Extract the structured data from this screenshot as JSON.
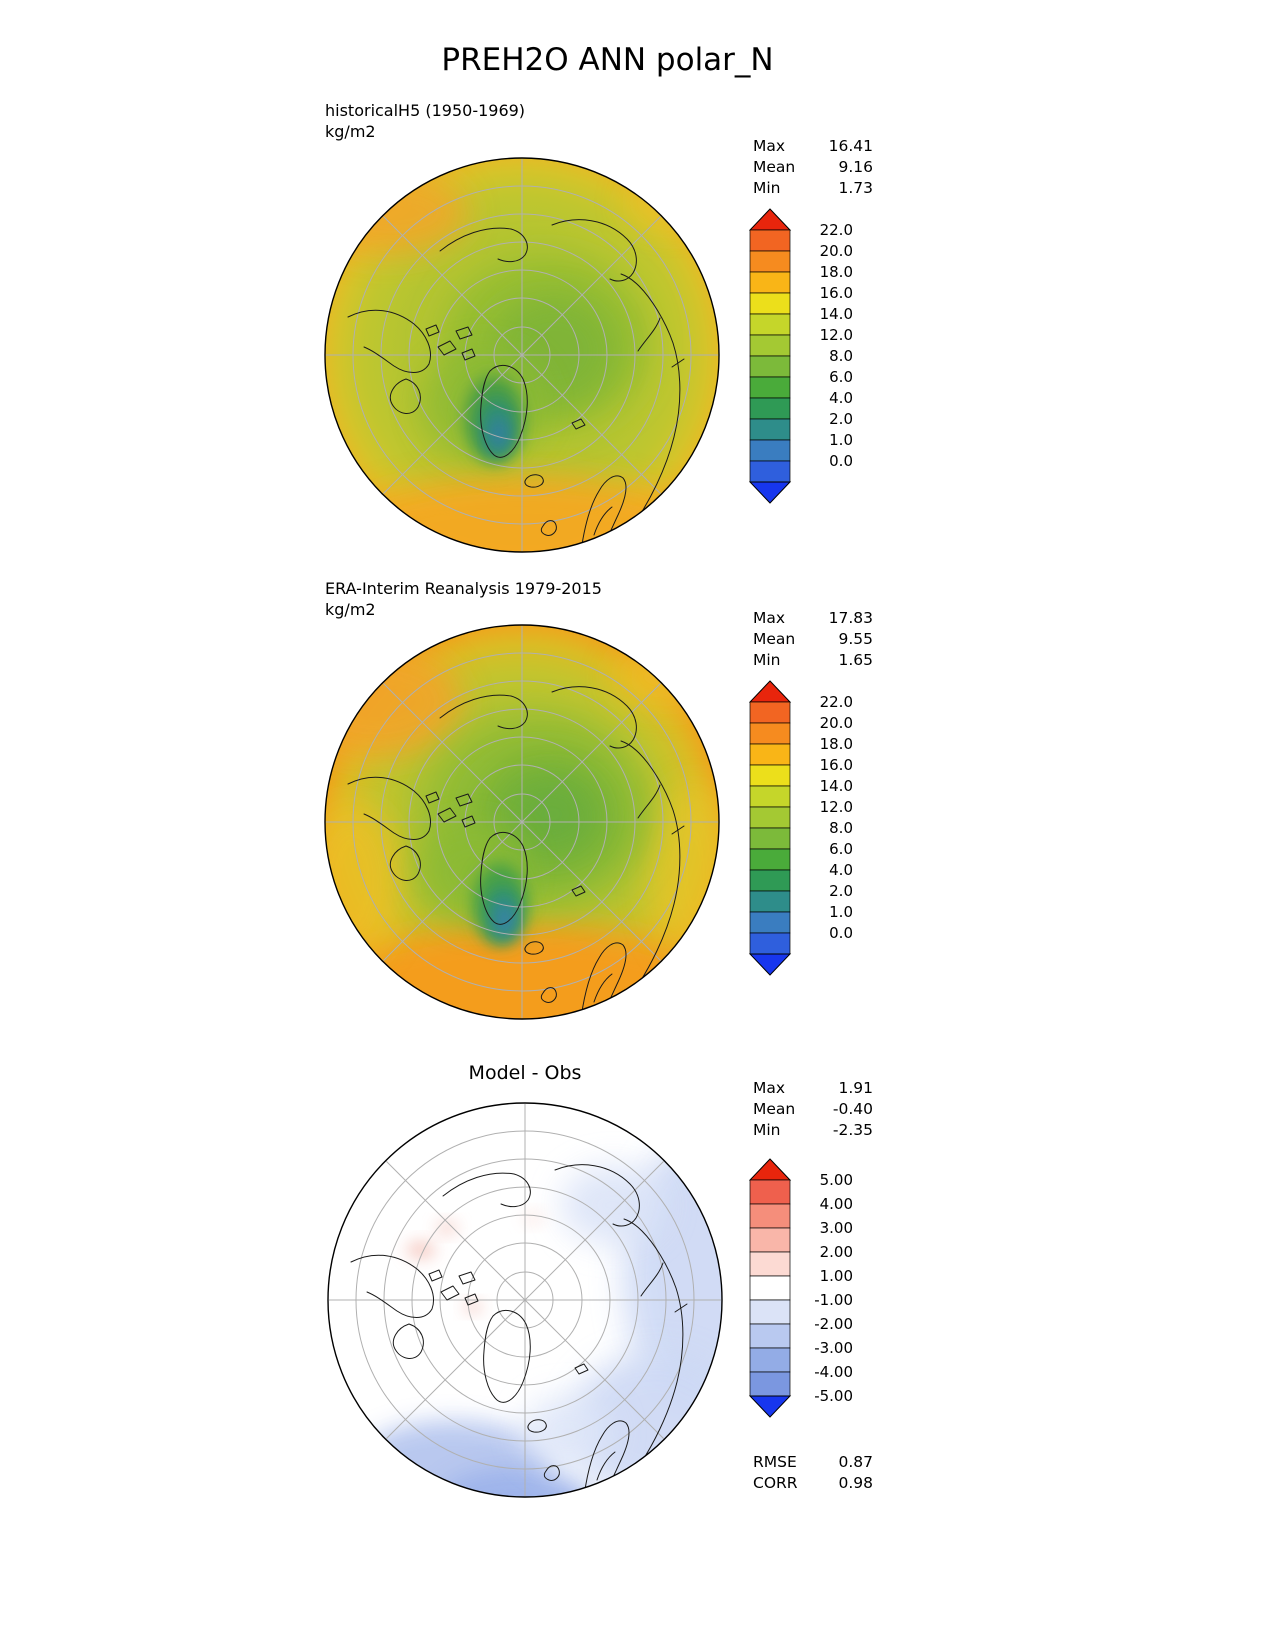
{
  "title": "PREH2O ANN polar_N",
  "panels": [
    {
      "label": "historicalH5 (1950-1969)",
      "units": "kg/m2",
      "stats": [
        {
          "name": "Max",
          "value": "16.41"
        },
        {
          "name": "Mean",
          "value": "9.16"
        },
        {
          "name": "Min",
          "value": "1.73"
        }
      ],
      "colorbar": {
        "labels": [
          "22.0",
          "20.0",
          "18.0",
          "16.0",
          "14.0",
          "12.0",
          "8.0",
          "6.0",
          "4.0",
          "2.0",
          "1.0",
          "0.0"
        ],
        "segments_top_to_bottom": [
          "#f26522",
          "#f68b1f",
          "#f9b517",
          "#ecdf1b",
          "#c5d62a",
          "#a4c933",
          "#7cba3a",
          "#4aab3a",
          "#2f9a55",
          "#2e8d8a",
          "#3a7dc0",
          "#2f5fdd"
        ],
        "arrow_top": "#e8250c",
        "arrow_bottom": "#1736ee"
      }
    },
    {
      "label": "ERA-Interim Reanalysis 1979-2015",
      "units": "kg/m2",
      "stats": [
        {
          "name": "Max",
          "value": "17.83"
        },
        {
          "name": "Mean",
          "value": "9.55"
        },
        {
          "name": "Min",
          "value": "1.65"
        }
      ],
      "colorbar": {
        "labels": [
          "22.0",
          "20.0",
          "18.0",
          "16.0",
          "14.0",
          "12.0",
          "8.0",
          "6.0",
          "4.0",
          "2.0",
          "1.0",
          "0.0"
        ],
        "segments_top_to_bottom": [
          "#f26522",
          "#f68b1f",
          "#f9b517",
          "#ecdf1b",
          "#c5d62a",
          "#a4c933",
          "#7cba3a",
          "#4aab3a",
          "#2f9a55",
          "#2e8d8a",
          "#3a7dc0",
          "#2f5fdd"
        ],
        "arrow_top": "#e8250c",
        "arrow_bottom": "#1736ee"
      }
    },
    {
      "label": "Model - Obs",
      "stats": [
        {
          "name": "Max",
          "value": "1.91"
        },
        {
          "name": "Mean",
          "value": "-0.40"
        },
        {
          "name": "Min",
          "value": "-2.35"
        }
      ],
      "colorbar": {
        "labels": [
          "5.00",
          "4.00",
          "3.00",
          "2.00",
          "1.00",
          "-1.00",
          "-2.00",
          "-3.00",
          "-4.00",
          "-5.00"
        ],
        "segments_top_to_bottom": [
          "#ef604d",
          "#f58e7b",
          "#f9b6a9",
          "#fcdad3",
          "#ffffff",
          "#dbe3f7",
          "#b9c9f0",
          "#93ace6",
          "#7b97e0"
        ],
        "arrow_top": "#e8250c",
        "arrow_bottom": "#1736ee"
      },
      "footer_stats": [
        {
          "name": "RMSE",
          "value": "0.87"
        },
        {
          "name": "CORR",
          "value": "0.98"
        }
      ]
    }
  ],
  "chart_data": [
    {
      "type": "heatmap",
      "projection": "north-polar-stereographic",
      "variable": "PREH2O",
      "season": "ANN",
      "region": "polar_N",
      "panel": "historicalH5 (1950-1969)",
      "units": "kg/m2",
      "stats": {
        "max": 16.41,
        "mean": 9.16,
        "min": 1.73
      },
      "contour_levels": [
        0.0,
        1.0,
        2.0,
        4.0,
        6.0,
        8.0,
        12.0,
        14.0,
        16.0,
        18.0,
        20.0,
        22.0
      ],
      "colormap": "blue-green-yellow-orange-red rainbow"
    },
    {
      "type": "heatmap",
      "projection": "north-polar-stereographic",
      "variable": "PREH2O",
      "season": "ANN",
      "region": "polar_N",
      "panel": "ERA-Interim Reanalysis 1979-2015",
      "units": "kg/m2",
      "stats": {
        "max": 17.83,
        "mean": 9.55,
        "min": 1.65
      },
      "contour_levels": [
        0.0,
        1.0,
        2.0,
        4.0,
        6.0,
        8.0,
        12.0,
        14.0,
        16.0,
        18.0,
        20.0,
        22.0
      ],
      "colormap": "blue-green-yellow-orange-red rainbow"
    },
    {
      "type": "heatmap",
      "projection": "north-polar-stereographic",
      "variable": "PREH2O difference",
      "season": "ANN",
      "region": "polar_N",
      "panel": "Model - Obs",
      "stats": {
        "max": 1.91,
        "mean": -0.4,
        "min": -2.35
      },
      "contour_levels": [
        -5.0,
        -4.0,
        -3.0,
        -2.0,
        -1.0,
        1.0,
        2.0,
        3.0,
        4.0,
        5.0
      ],
      "colormap": "blue-white-red diverging",
      "rmse": 0.87,
      "corr": 0.98
    }
  ]
}
